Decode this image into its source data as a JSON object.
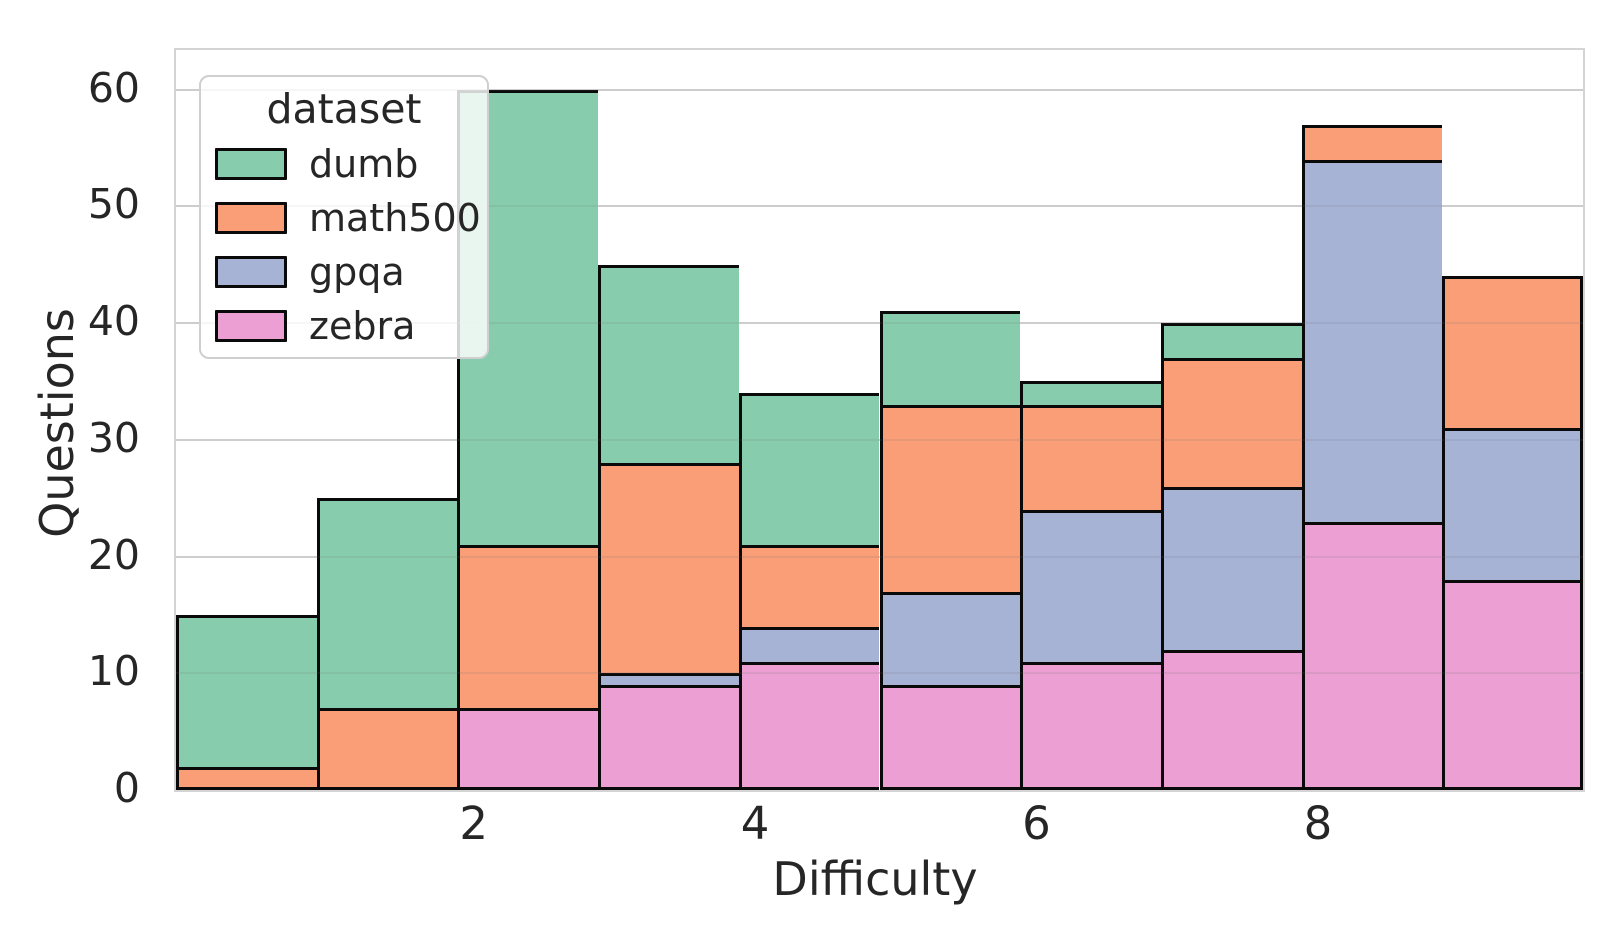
{
  "chart": {
    "ylabel": "Questions",
    "xlabel": "Difficulty",
    "legend": {
      "title": "dataset"
    }
  },
  "chart_data": {
    "type": "bar",
    "stacked": true,
    "title": "",
    "xlabel": "Difficulty",
    "ylabel": "Questions",
    "grid": true,
    "legend_position": "upper left",
    "legend_title": "dataset",
    "legend_order": [
      "dumb",
      "math500",
      "gpqa",
      "zebra"
    ],
    "stack_order_bottom_to_top": [
      "zebra",
      "gpqa",
      "math500",
      "dumb"
    ],
    "bins": 10,
    "bin_edges": [
      -0.13,
      0.87,
      1.87,
      2.87,
      3.87,
      4.87,
      5.87,
      6.87,
      7.87,
      8.87,
      9.87
    ],
    "xlim": [
      -0.13,
      9.87
    ],
    "ylim": [
      0,
      63.4
    ],
    "xticks": [
      2,
      4,
      6,
      8
    ],
    "yticks": [
      0,
      10,
      20,
      30,
      40,
      50,
      60
    ],
    "series": [
      {
        "name": "zebra",
        "color": "#eb9fd2",
        "values": [
          0,
          0,
          7,
          9,
          11,
          9,
          11,
          12,
          23,
          18
        ]
      },
      {
        "name": "gpqa",
        "color": "#a7b3d5",
        "values": [
          0,
          0,
          0,
          1,
          3,
          8,
          13,
          14,
          31,
          13
        ]
      },
      {
        "name": "math500",
        "color": "#f99e77",
        "values": [
          2,
          7,
          14,
          18,
          7,
          16,
          9,
          11,
          3,
          13
        ]
      },
      {
        "name": "dumb",
        "color": "#87cdad",
        "values": [
          13,
          18,
          39,
          17,
          13,
          8,
          2,
          3,
          0,
          0
        ]
      }
    ],
    "bar_totals": [
      15,
      25,
      60,
      45,
      34,
      41,
      35,
      40,
      57,
      44
    ],
    "edge_color": "#0a0a0a"
  }
}
